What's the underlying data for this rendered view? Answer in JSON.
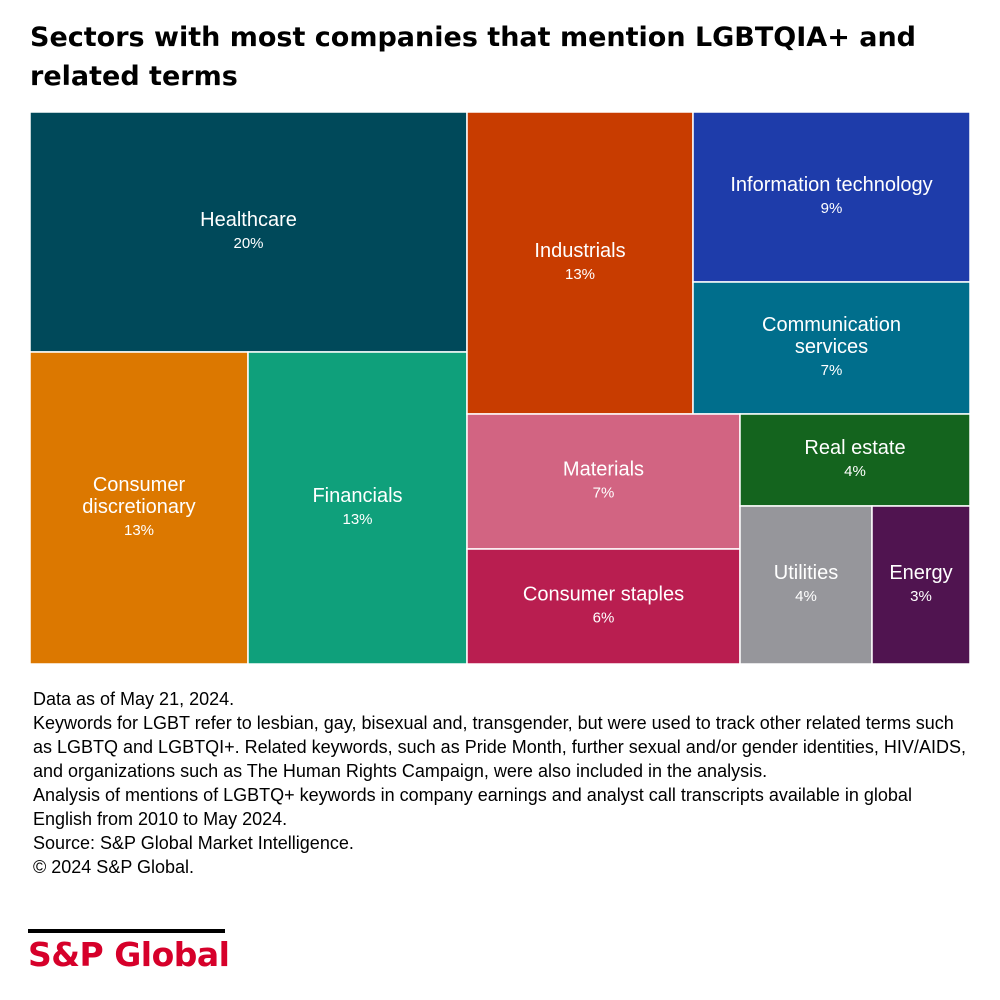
{
  "title": "Sectors with most companies that mention LGBTQIA+ and related terms",
  "chart_data": {
    "type": "treemap",
    "title": "Sectors with most companies that mention LGBTQIA+ and related terms",
    "unit": "%",
    "items": [
      {
        "label": [
          "Healthcare"
        ],
        "value": 20,
        "display": "20%",
        "color": "#00495a"
      },
      {
        "label": [
          "Consumer",
          "discretionary"
        ],
        "value": 13,
        "display": "13%",
        "color": "#dc7800"
      },
      {
        "label": [
          "Financials"
        ],
        "value": 13,
        "display": "13%",
        "color": "#0fa07b"
      },
      {
        "label": [
          "Industrials"
        ],
        "value": 13,
        "display": "13%",
        "color": "#c83c00"
      },
      {
        "label": [
          "Information technology"
        ],
        "value": 9,
        "display": "9%",
        "color": "#1e3caa"
      },
      {
        "label": [
          "Communication",
          "services"
        ],
        "value": 7,
        "display": "7%",
        "color": "#006e8c"
      },
      {
        "label": [
          "Materials"
        ],
        "value": 7,
        "display": "7%",
        "color": "#d26482"
      },
      {
        "label": [
          "Consumer staples"
        ],
        "value": 6,
        "display": "6%",
        "color": "#b91e50"
      },
      {
        "label": [
          "Real estate"
        ],
        "value": 4,
        "display": "4%",
        "color": "#14641e"
      },
      {
        "label": [
          "Utilities"
        ],
        "value": 4,
        "display": "4%",
        "color": "#96969b"
      },
      {
        "label": [
          "Energy"
        ],
        "value": 3,
        "display": "3%",
        "color": "#501450"
      }
    ]
  },
  "notes": [
    "Data as of May 21, 2024.",
    "Keywords for LGBT refer to lesbian, gay, bisexual and, transgender, but were used to track other related terms such as LGBTQ and LGBTQI+. Related keywords, such as Pride Month, further sexual and/or gender identities, HIV/AIDS, and organizations such as The Human Rights Campaign, were also included in the analysis.",
    "Analysis of mentions of LGBTQ+ keywords in company earnings and analyst call transcripts available in global English from 2010 to May 2024.",
    "Source: S&P Global Market Intelligence.",
    "© 2024 S&P Global."
  ],
  "logo": {
    "text": "S&P Global"
  }
}
